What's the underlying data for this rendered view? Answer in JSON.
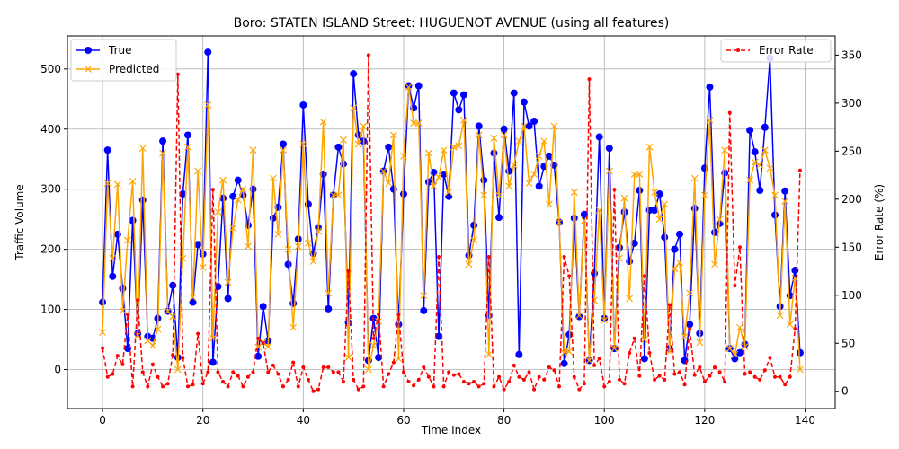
{
  "chart_data": {
    "type": "line",
    "title": "Boro: STATEN ISLAND Street: HUGUENOT AVENUE (using all features)",
    "xlabel": "Time Index",
    "ylabel": "Traffic Volume",
    "y2label": "Error Rate (%)",
    "xlim": [
      -7,
      146
    ],
    "ylim": [
      -65,
      555
    ],
    "y2lim": [
      -18,
      370
    ],
    "xticks": [
      0,
      20,
      40,
      60,
      80,
      100,
      120,
      140
    ],
    "yticks": [
      0,
      100,
      200,
      300,
      400,
      500
    ],
    "y2ticks": [
      0,
      50,
      100,
      150,
      200,
      250,
      300,
      350
    ],
    "grid": true,
    "legend_left": "upper-left",
    "legend_right": "upper-right",
    "series": [
      {
        "name": "True",
        "axis": "left",
        "color": "#0000ff",
        "marker": "circle",
        "values": [
          112,
          365,
          155,
          225,
          135,
          35,
          248,
          60,
          282,
          55,
          52,
          85,
          380,
          97,
          140,
          20,
          292,
          390,
          112,
          208,
          192,
          528,
          12,
          138,
          285,
          118,
          288,
          315,
          290,
          240,
          300,
          22,
          105,
          48,
          252,
          270,
          375,
          175,
          110,
          217,
          440,
          275,
          193,
          236,
          325,
          101,
          290,
          370,
          342,
          78,
          492,
          390,
          380,
          15,
          85,
          20,
          330,
          370,
          300,
          75,
          292,
          472,
          435,
          472,
          98,
          312,
          328,
          55,
          325,
          288,
          460,
          432,
          457,
          190,
          240,
          405,
          315,
          90,
          360,
          253,
          400,
          330,
          460,
          25,
          445,
          405,
          413,
          305,
          338,
          355,
          340,
          245,
          10,
          58,
          252,
          88,
          258,
          15,
          160,
          387,
          85,
          368,
          35,
          203,
          262,
          180,
          210,
          298,
          18,
          265,
          265,
          292,
          220,
          35,
          200,
          225,
          15,
          75,
          268,
          60,
          335,
          470,
          228,
          243,
          327,
          35,
          18,
          28,
          42,
          398,
          362,
          298,
          403,
          518,
          257,
          105,
          297,
          123,
          165,
          28
        ],
        "bind_name": "True"
      },
      {
        "name": "Predicted",
        "axis": "left",
        "color": "#ffa500",
        "marker": "x",
        "values": [
          62,
          310,
          185,
          308,
          98,
          215,
          313,
          57,
          368,
          48,
          40,
          67,
          360,
          97,
          88,
          0,
          185,
          370,
          120,
          330,
          170,
          440,
          52,
          262,
          315,
          145,
          235,
          282,
          300,
          205,
          365,
          37,
          45,
          38,
          318,
          225,
          365,
          200,
          70,
          205,
          375,
          210,
          180,
          230,
          412,
          127,
          290,
          290,
          382,
          20,
          435,
          375,
          405,
          0,
          40,
          80,
          330,
          310,
          390,
          18,
          355,
          470,
          410,
          410,
          123,
          360,
          305,
          320,
          365,
          295,
          370,
          372,
          415,
          175,
          215,
          390,
          290,
          25,
          385,
          290,
          390,
          305,
          340,
          380,
          405,
          310,
          325,
          355,
          380,
          275,
          405,
          245,
          28,
          30,
          295,
          90,
          248,
          15,
          115,
          265,
          82,
          330,
          35,
          185,
          285,
          118,
          325,
          325,
          50,
          370,
          295,
          250,
          275,
          30,
          168,
          178,
          55,
          127,
          318,
          45,
          290,
          415,
          175,
          250,
          365,
          35,
          25,
          70,
          38,
          315,
          345,
          340,
          365,
          335,
          290,
          90,
          280,
          75,
          152,
          0
        ],
        "bind_name": "Predicted"
      },
      {
        "name": "Error Rate",
        "axis": "right",
        "color": "#ff0000",
        "marker": "dot",
        "values": [
          45,
          15,
          18,
          37,
          28,
          80,
          5,
          95,
          20,
          5,
          28,
          15,
          5,
          8,
          38,
          330,
          35,
          5,
          7,
          60,
          8,
          20,
          210,
          20,
          10,
          5,
          20,
          16,
          5,
          15,
          20,
          55,
          50,
          20,
          27,
          18,
          5,
          12,
          30,
          5,
          25,
          12,
          0,
          2,
          25,
          25,
          20,
          20,
          10,
          125,
          12,
          2,
          5,
          350,
          55,
          80,
          5,
          18,
          30,
          80,
          20,
          10,
          6,
          12,
          25,
          15,
          5,
          140,
          5,
          20,
          17,
          18,
          10,
          8,
          10,
          5,
          8,
          140,
          5,
          15,
          2,
          10,
          27,
          15,
          12,
          20,
          2,
          15,
          12,
          25,
          22,
          5,
          140,
          120,
          15,
          2,
          8,
          325,
          27,
          34,
          5,
          10,
          210,
          12,
          8,
          40,
          55,
          16,
          120,
          40,
          12,
          16,
          12,
          90,
          18,
          20,
          7,
          65,
          17,
          25,
          10,
          16,
          25,
          20,
          10,
          290,
          110,
          150,
          18,
          20,
          15,
          12,
          22,
          35,
          15,
          15,
          7,
          15,
          65,
          230
        ],
        "bind_name": "Error Rate"
      }
    ]
  }
}
